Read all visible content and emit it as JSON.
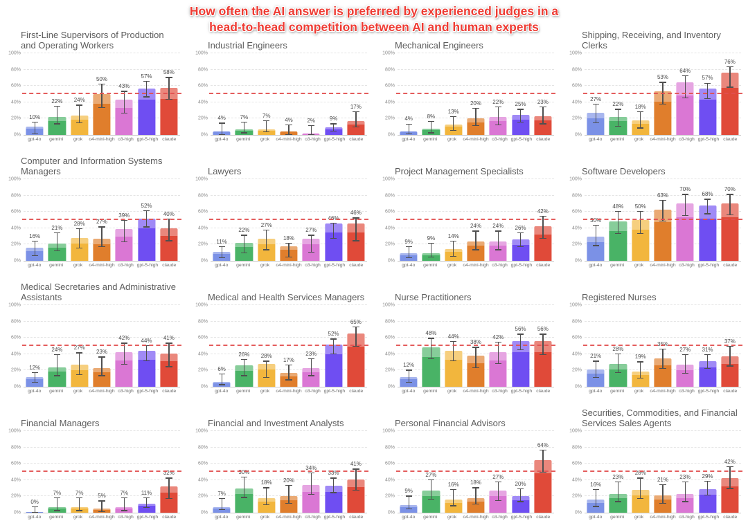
{
  "page_title": {
    "line1": "How often the AI answer is preferred by experienced judges in a",
    "line2": "head-to-head competition between AI and human experts"
  },
  "models": [
    "gpt-4o",
    "gemini",
    "grok",
    "o4-mini-high",
    "o3-high",
    "gpt-5-high",
    "claude"
  ],
  "model_colors": [
    "#7b91e6",
    "#49b366",
    "#f2b63d",
    "#e07e2c",
    "#da77d4",
    "#6f4ef2",
    "#e04a39"
  ],
  "reference_line_value": 50,
  "reference_line_color": "#e25050",
  "y_ticks": [
    0,
    20,
    40,
    60,
    80,
    100
  ],
  "y_tick_labels": [
    "0%",
    "20%",
    "40%",
    "60%",
    "80%",
    "100%"
  ],
  "chart_data": [
    {
      "type": "bar",
      "title": "First-Line Supervisors of Production and Operating Workers",
      "categories": [
        "gpt-4o",
        "gemini",
        "grok",
        "o4-mini-high",
        "o3-high",
        "gpt-5-high",
        "claude"
      ],
      "values": [
        10,
        22,
        24,
        50,
        43,
        57,
        58
      ],
      "err_low": [
        1,
        13,
        14,
        33,
        26,
        46,
        43
      ],
      "err_high": [
        16,
        36,
        37,
        63,
        54,
        66,
        71
      ],
      "ylabel": "",
      "xlabel": "",
      "ylim": [
        0,
        100
      ],
      "grid": true,
      "legend": false
    },
    {
      "type": "bar",
      "title": "Industrial Engineers",
      "categories": [
        "gpt-4o",
        "gemini",
        "grok",
        "o4-mini-high",
        "o3-high",
        "gpt-5-high",
        "claude"
      ],
      "values": [
        4,
        7,
        7,
        4,
        2,
        9,
        17
      ],
      "err_low": [
        0,
        2,
        3,
        0,
        0,
        4,
        9
      ],
      "err_high": [
        15,
        16,
        18,
        13,
        12,
        14,
        29
      ],
      "ylabel": "",
      "xlabel": "",
      "ylim": [
        0,
        100
      ],
      "grid": true,
      "legend": false
    },
    {
      "type": "bar",
      "title": "Mechanical Engineers",
      "categories": [
        "gpt-4o",
        "gemini",
        "grok",
        "o4-mini-high",
        "o3-high",
        "gpt-5-high",
        "claude"
      ],
      "values": [
        4,
        8,
        13,
        20,
        22,
        25,
        23
      ],
      "err_low": [
        1,
        2,
        5,
        11,
        12,
        15,
        13
      ],
      "err_high": [
        14,
        17,
        23,
        33,
        35,
        32,
        35
      ],
      "ylabel": "",
      "xlabel": "",
      "ylim": [
        0,
        100
      ],
      "grid": true,
      "legend": false
    },
    {
      "type": "bar",
      "title": "Shipping, Receiving, and Inventory Clerks",
      "categories": [
        "gpt-4o",
        "gemini",
        "grok",
        "o4-mini-high",
        "o3-high",
        "gpt-5-high",
        "claude"
      ],
      "values": [
        27,
        22,
        18,
        53,
        64,
        57,
        76
      ],
      "err_low": [
        14,
        10,
        8,
        37,
        45,
        44,
        58
      ],
      "err_high": [
        38,
        32,
        29,
        65,
        73,
        64,
        84
      ],
      "ylabel": "",
      "xlabel": "",
      "ylim": [
        0,
        100
      ],
      "grid": true,
      "legend": false
    },
    {
      "type": "bar",
      "title": "Computer and Information Systems Managers",
      "categories": [
        "gpt-4o",
        "gemini",
        "grok",
        "o4-mini-high",
        "o3-high",
        "gpt-5-high",
        "claude"
      ],
      "values": [
        16,
        21,
        28,
        27,
        39,
        52,
        40
      ],
      "err_low": [
        6,
        12,
        15,
        17,
        23,
        41,
        24
      ],
      "err_high": [
        25,
        35,
        40,
        42,
        50,
        62,
        52
      ],
      "ylabel": "",
      "xlabel": "",
      "ylim": [
        0,
        100
      ],
      "grid": true,
      "legend": false
    },
    {
      "type": "bar",
      "title": "Lawyers",
      "categories": [
        "gpt-4o",
        "gemini",
        "grok",
        "o4-mini-high",
        "o3-high",
        "gpt-5-high",
        "claude"
      ],
      "values": [
        11,
        22,
        27,
        18,
        27,
        46,
        46
      ],
      "err_low": [
        3,
        9,
        13,
        4,
        10,
        27,
        24
      ],
      "err_high": [
        18,
        32,
        38,
        22,
        32,
        47,
        53
      ],
      "ylabel": "",
      "xlabel": "",
      "ylim": [
        0,
        100
      ],
      "grid": true,
      "legend": false
    },
    {
      "type": "bar",
      "title": "Project Management Specialists",
      "categories": [
        "gpt-4o",
        "gemini",
        "grok",
        "o4-mini-high",
        "o3-high",
        "gpt-5-high",
        "claude"
      ],
      "values": [
        9,
        9,
        14,
        24,
        24,
        26,
        42
      ],
      "err_low": [
        3,
        4,
        5,
        13,
        13,
        17,
        27
      ],
      "err_high": [
        18,
        22,
        25,
        37,
        37,
        35,
        55
      ],
      "ylabel": "",
      "xlabel": "",
      "ylim": [
        0,
        100
      ],
      "grid": true,
      "legend": false
    },
    {
      "type": "bar",
      "title": "Software Developers",
      "categories": [
        "gpt-4o",
        "gemini",
        "grok",
        "o4-mini-high",
        "o3-high",
        "gpt-5-high",
        "claude"
      ],
      "values": [
        30,
        48,
        50,
        63,
        70,
        68,
        70
      ],
      "err_low": [
        18,
        33,
        33,
        48,
        55,
        57,
        56
      ],
      "err_high": [
        44,
        61,
        61,
        75,
        82,
        76,
        82
      ],
      "ylabel": "",
      "xlabel": "",
      "ylim": [
        0,
        100
      ],
      "grid": true,
      "legend": false
    },
    {
      "type": "bar",
      "title": "Medical Secretaries and Administrative Assistants",
      "categories": [
        "gpt-4o",
        "gemini",
        "grok",
        "o4-mini-high",
        "o3-high",
        "gpt-5-high",
        "claude"
      ],
      "values": [
        12,
        24,
        27,
        23,
        42,
        44,
        41
      ],
      "err_low": [
        5,
        13,
        14,
        13,
        27,
        31,
        24
      ],
      "err_high": [
        18,
        40,
        42,
        37,
        54,
        51,
        54
      ],
      "ylabel": "",
      "xlabel": "",
      "ylim": [
        0,
        100
      ],
      "grid": true,
      "legend": false
    },
    {
      "type": "bar",
      "title": "Medical and Health Services Managers",
      "categories": [
        "gpt-4o",
        "gemini",
        "grok",
        "o4-mini-high",
        "o3-high",
        "gpt-5-high",
        "claude"
      ],
      "values": [
        6,
        26,
        28,
        17,
        23,
        52,
        65
      ],
      "err_low": [
        2,
        13,
        11,
        8,
        13,
        40,
        49
      ],
      "err_high": [
        16,
        34,
        32,
        27,
        35,
        59,
        74
      ],
      "ylabel": "",
      "xlabel": "",
      "ylim": [
        0,
        100
      ],
      "grid": true,
      "legend": false
    },
    {
      "type": "bar",
      "title": "Nurse Practitioners",
      "categories": [
        "gpt-4o",
        "gemini",
        "grok",
        "o4-mini-high",
        "o3-high",
        "gpt-5-high",
        "claude"
      ],
      "values": [
        12,
        48,
        44,
        38,
        42,
        56,
        56
      ],
      "err_low": [
        5,
        34,
        31,
        23,
        28,
        45,
        39
      ],
      "err_high": [
        21,
        60,
        56,
        49,
        55,
        65,
        65
      ],
      "ylabel": "",
      "xlabel": "",
      "ylim": [
        0,
        100
      ],
      "grid": true,
      "legend": false
    },
    {
      "type": "bar",
      "title": "Registered Nurses",
      "categories": [
        "gpt-4o",
        "gemini",
        "grok",
        "o4-mini-high",
        "o3-high",
        "gpt-5-high",
        "claude"
      ],
      "values": [
        21,
        28,
        19,
        35,
        27,
        31,
        37
      ],
      "err_low": [
        11,
        17,
        10,
        22,
        16,
        22,
        25
      ],
      "err_high": [
        32,
        41,
        31,
        47,
        40,
        40,
        50
      ],
      "ylabel": "",
      "xlabel": "",
      "ylim": [
        0,
        100
      ],
      "grid": true,
      "legend": false
    },
    {
      "type": "bar",
      "title": "Financial Managers",
      "categories": [
        "gpt-4o",
        "gemini",
        "grok",
        "o4-mini-high",
        "o3-high",
        "gpt-5-high",
        "claude"
      ],
      "values": [
        0,
        7,
        7,
        5,
        7,
        11,
        32
      ],
      "err_low": [
        0,
        2,
        2,
        1,
        2,
        6,
        17
      ],
      "err_high": [
        8,
        19,
        19,
        15,
        19,
        19,
        43
      ],
      "ylabel": "",
      "xlabel": "",
      "ylim": [
        0,
        100
      ],
      "grid": true,
      "legend": false
    },
    {
      "type": "bar",
      "title": "Financial and Investment Analysts",
      "categories": [
        "gpt-4o",
        "gemini",
        "grok",
        "o4-mini-high",
        "o3-high",
        "gpt-5-high",
        "claude"
      ],
      "values": [
        7,
        30,
        18,
        20,
        34,
        33,
        41
      ],
      "err_low": [
        3,
        18,
        9,
        11,
        22,
        24,
        27
      ],
      "err_high": [
        18,
        44,
        31,
        34,
        49,
        43,
        54
      ],
      "ylabel": "",
      "xlabel": "",
      "ylim": [
        0,
        100
      ],
      "grid": true,
      "legend": false
    },
    {
      "type": "bar",
      "title": "Personal Financial Advisors",
      "categories": [
        "gpt-4o",
        "gemini",
        "grok",
        "o4-mini-high",
        "o3-high",
        "gpt-5-high",
        "claude"
      ],
      "values": [
        9,
        27,
        16,
        18,
        27,
        20,
        64
      ],
      "err_low": [
        4,
        16,
        8,
        10,
        14,
        13,
        49
      ],
      "err_high": [
        21,
        41,
        29,
        31,
        38,
        30,
        77
      ],
      "ylabel": "",
      "xlabel": "",
      "ylim": [
        0,
        100
      ],
      "grid": true,
      "legend": false
    },
    {
      "type": "bar",
      "title": "Securities, Commodities, and Financial Services Sales Agents",
      "categories": [
        "gpt-4o",
        "gemini",
        "grok",
        "o4-mini-high",
        "o3-high",
        "gpt-5-high",
        "claude"
      ],
      "values": [
        16,
        23,
        28,
        21,
        23,
        29,
        42
      ],
      "err_low": [
        7,
        13,
        17,
        11,
        13,
        21,
        29
      ],
      "err_high": [
        29,
        38,
        43,
        35,
        38,
        39,
        57
      ],
      "ylabel": "",
      "xlabel": "",
      "ylim": [
        0,
        100
      ],
      "grid": true,
      "legend": false
    }
  ]
}
